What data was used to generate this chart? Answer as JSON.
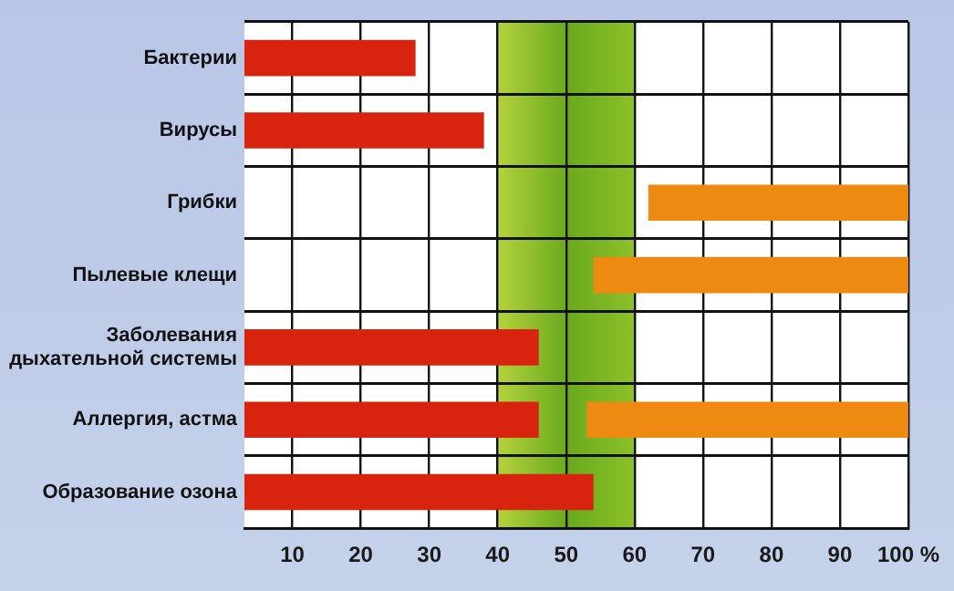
{
  "chart_data": {
    "type": "bar",
    "orientation": "horizontal",
    "categories": [
      "Бактерии",
      "Вирусы",
      "Грибки",
      "Пылевые клещи",
      "Заболевания дыхательной системы",
      "Аллергия, астма",
      "Образование озона"
    ],
    "series": [
      {
        "color": "#d8230f",
        "base": [
          3,
          3,
          null,
          null,
          3,
          3,
          3
        ],
        "values": [
          25,
          35,
          null,
          null,
          43,
          43,
          51
        ]
      },
      {
        "color": "#ee8a12",
        "base": [
          null,
          null,
          62,
          54,
          null,
          53,
          null
        ],
        "values": [
          null,
          null,
          38,
          46,
          null,
          47,
          null
        ]
      }
    ],
    "xlim": [
      3,
      100
    ],
    "xticks": [
      10,
      20,
      30,
      40,
      50,
      60,
      70,
      80,
      90,
      {
        "value": 100,
        "label": "100 %"
      }
    ],
    "bands": [
      {
        "axis": "x",
        "from": 40,
        "to": 60,
        "color": "#6aaa1e"
      }
    ],
    "grid": true,
    "legend": false
  }
}
